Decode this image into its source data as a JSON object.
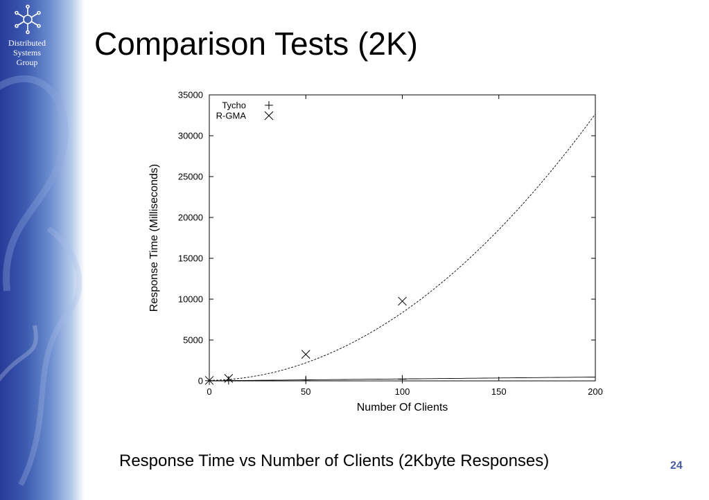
{
  "slide": {
    "title": "Comparison Tests (2K)",
    "caption": "Response Time vs Number of Clients (2Kbyte Responses)",
    "page_number": "24"
  },
  "logo": {
    "icon": "snowflake-network-icon",
    "lines": [
      "Distributed",
      "Systems",
      "Group"
    ]
  },
  "colors": {
    "sidebar_dark": "#283a98",
    "sidebar_light": "#b6cbeb",
    "page_number": "#4a5aa8"
  },
  "chart_data": {
    "type": "scatter",
    "title": "",
    "xlabel": "Number Of Clients",
    "ylabel": "Response Time (Milliseconds)",
    "xlim": [
      0,
      200
    ],
    "ylim": [
      0,
      35000
    ],
    "xticks": [
      0,
      50,
      100,
      150,
      200
    ],
    "yticks": [
      0,
      5000,
      10000,
      15000,
      20000,
      25000,
      30000,
      35000
    ],
    "grid": false,
    "legend_position": "top-left",
    "series": [
      {
        "name": "Tycho",
        "marker": "plus",
        "points": [
          [
            0,
            20
          ],
          [
            10,
            60
          ],
          [
            50,
            120
          ],
          [
            100,
            200
          ]
        ],
        "fit": {
          "type": "linear",
          "a": 2.3,
          "b": 10
        }
      },
      {
        "name": "R-GMA",
        "marker": "cross",
        "points": [
          [
            0,
            60
          ],
          [
            10,
            310
          ],
          [
            50,
            3250
          ],
          [
            100,
            9750
          ]
        ],
        "fit": {
          "type": "quadratic",
          "a": 0.8,
          "b": 3,
          "c": 60
        }
      }
    ]
  }
}
